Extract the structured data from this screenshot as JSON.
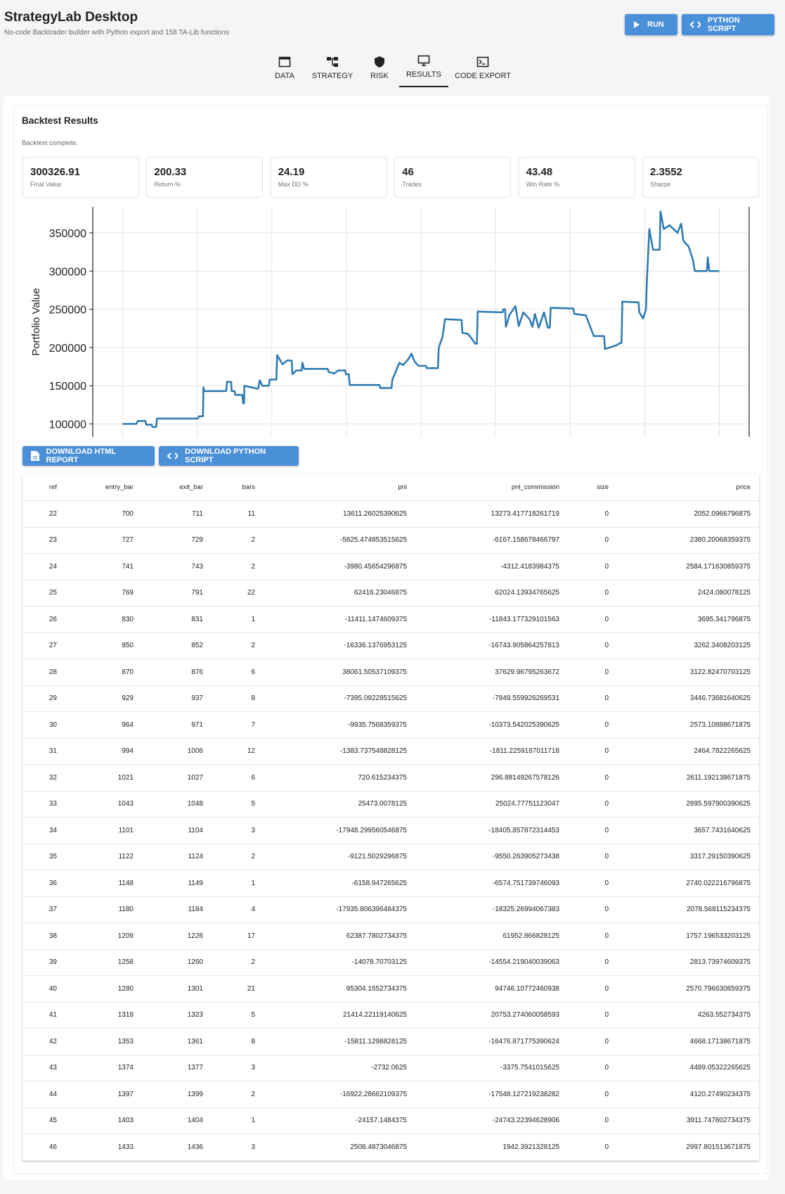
{
  "header": {
    "title": "StrategyLab Desktop",
    "subtitle": "No-code Backtrader builder with Python export and 158 TA-Lib functions"
  },
  "actions": [
    "RUN",
    "PYTHON SCRIPT"
  ],
  "tabs": [
    "DATA",
    "STRATEGY",
    "RISK",
    "RESULTS",
    "CODE EXPORT"
  ],
  "results": {
    "title": "Backtest Results",
    "status": "Backtest complete.",
    "metrics": [
      {
        "value": "300326.91",
        "label": "Final Value"
      },
      {
        "value": "200.33",
        "label": "Return %"
      },
      {
        "value": "24.19",
        "label": "Max DD %"
      },
      {
        "value": "46",
        "label": "Trades"
      },
      {
        "value": "43.48",
        "label": "Win Rate %"
      },
      {
        "value": "2.3552",
        "label": "Sharpe"
      }
    ],
    "downloads": [
      "DOWNLOAD HTML REPORT",
      "DOWNLOAD PYTHON SCRIPT"
    ]
  },
  "chart_data": {
    "type": "line",
    "ylabel": "Portfolio Value",
    "color": "#2a78b0",
    "grid": true,
    "ylim": [
      83000,
      384000
    ],
    "yticks": [
      100000,
      150000,
      200000,
      250000,
      300000,
      350000
    ],
    "x": [
      0,
      33,
      37,
      55,
      57,
      70,
      72,
      81,
      83,
      182,
      184,
      194,
      195,
      197,
      250,
      252,
      262,
      263,
      270,
      272,
      289,
      291,
      293,
      294,
      309,
      327,
      331,
      337,
      353,
      355,
      371,
      373,
      386,
      397,
      408,
      410,
      419,
      432,
      434,
      438,
      495,
      497,
      511,
      520,
      537,
      539,
      546,
      548,
      620,
      622,
      649,
      651,
      658,
      668,
      677,
      690,
      697,
      704,
      714,
      732,
      734,
      761,
      763,
      772,
      778,
      818,
      820,
      833,
      842,
      851,
      855,
      857,
      917,
      919,
      923,
      925,
      934,
      948,
      956,
      967,
      982,
      989,
      995,
      1004,
      1017,
      1026,
      1031,
      1033,
      1088,
      1090,
      1118,
      1137,
      1162,
      1164,
      1192,
      1201,
      1204,
      1206,
      1245,
      1247,
      1256,
      1263,
      1265,
      1271,
      1280,
      1296,
      1298,
      1306,
      1320,
      1339,
      1348,
      1353,
      1366,
      1376,
      1381,
      1410,
      1412,
      1416,
      1440
    ],
    "values": [
      100000,
      100000,
      104000,
      104000,
      99000,
      99000,
      96000,
      96000,
      107000,
      107000,
      110000,
      110000,
      148000,
      143000,
      143000,
      155000,
      155000,
      143000,
      143000,
      138000,
      138000,
      127000,
      127000,
      150000,
      148000,
      146000,
      157000,
      150000,
      150000,
      158000,
      158000,
      190000,
      178000,
      183000,
      183000,
      165000,
      170000,
      170000,
      180000,
      172000,
      172000,
      168000,
      166000,
      170000,
      170000,
      165000,
      165000,
      151000,
      151000,
      147000,
      147000,
      158000,
      167000,
      180000,
      177000,
      185000,
      192000,
      182000,
      176000,
      176000,
      173000,
      173000,
      200000,
      214000,
      237000,
      236000,
      219000,
      218000,
      212000,
      205000,
      205000,
      247000,
      246000,
      250000,
      250000,
      227000,
      243000,
      254000,
      228000,
      246000,
      237000,
      227000,
      244000,
      226000,
      246000,
      226000,
      226000,
      252000,
      251000,
      244000,
      242000,
      215000,
      215000,
      198000,
      203000,
      206000,
      206000,
      260000,
      259000,
      246000,
      238000,
      250000,
      285000,
      355000,
      328000,
      328000,
      378000,
      355000,
      360000,
      350000,
      362000,
      340000,
      332000,
      315000,
      300000,
      300000,
      318000,
      300000,
      300000
    ]
  },
  "table": {
    "columns": [
      "ref",
      "entry_bar",
      "exit_bar",
      "bars",
      "pnl",
      "pnl_commission",
      "size",
      "price"
    ],
    "rows": [
      [
        "22",
        "700",
        "711",
        "11",
        "13611.26025390625",
        "13273.417718261719",
        "0",
        "2052.0966796875"
      ],
      [
        "23",
        "727",
        "729",
        "2",
        "-5825.474853515625",
        "-6167.158678466797",
        "0",
        "2380.20068359375"
      ],
      [
        "24",
        "741",
        "743",
        "2",
        "-3980.45654296875",
        "-4312.4183984375",
        "0",
        "2584.171630859375"
      ],
      [
        "25",
        "769",
        "791",
        "22",
        "62416.23046875",
        "62024.13934765625",
        "0",
        "2424.080078125"
      ],
      [
        "26",
        "830",
        "831",
        "1",
        "-11411.1474609375",
        "-11843.177329101563",
        "0",
        "3695.341796875"
      ],
      [
        "27",
        "850",
        "852",
        "2",
        "-16336.1376953125",
        "-16743.905864257813",
        "0",
        "3262.3408203125"
      ],
      [
        "28",
        "870",
        "876",
        "6",
        "38061.50537109375",
        "37629.96795263672",
        "0",
        "3122.82470703125"
      ],
      [
        "29",
        "929",
        "937",
        "8",
        "-7395.09228515625",
        "-7849.559926269531",
        "0",
        "3446.73681640625"
      ],
      [
        "30",
        "964",
        "971",
        "7",
        "-9935.7568359375",
        "-10373.542025390625",
        "0",
        "2573.10888671875"
      ],
      [
        "31",
        "994",
        "1006",
        "12",
        "-1383.737548828125",
        "-1811.2259187011718",
        "0",
        "2464.7822265625"
      ],
      [
        "32",
        "1021",
        "1027",
        "6",
        "720.615234375",
        "296.88149267578126",
        "0",
        "2611.192138671875"
      ],
      [
        "33",
        "1043",
        "1048",
        "5",
        "25473.0078125",
        "25024.77751123047",
        "0",
        "2895.597900390625"
      ],
      [
        "34",
        "1101",
        "1104",
        "3",
        "-17948.299560546875",
        "-18405.857872314453",
        "0",
        "3657.7431640625"
      ],
      [
        "35",
        "1122",
        "1124",
        "2",
        "-9121.5029296875",
        "-9550.263905273438",
        "0",
        "3317.29150390625"
      ],
      [
        "36",
        "1148",
        "1149",
        "1",
        "-6158.947265625",
        "-6574.751739746093",
        "0",
        "2740.022216796875"
      ],
      [
        "37",
        "1180",
        "1184",
        "4",
        "-17935.806396484375",
        "-18325.26994067383",
        "0",
        "2078.568115234375"
      ],
      [
        "38",
        "1209",
        "1226",
        "17",
        "62387.7802734375",
        "61952.866828125",
        "0",
        "1757.196533203125"
      ],
      [
        "39",
        "1258",
        "1260",
        "2",
        "-14078.70703125",
        "-14554.219040039063",
        "0",
        "2813.73974609375"
      ],
      [
        "40",
        "1280",
        "1301",
        "21",
        "95304.1552734375",
        "94746.10772460938",
        "0",
        "2570.796630859375"
      ],
      [
        "41",
        "1318",
        "1323",
        "5",
        "21414.22119140625",
        "20753.274060058593",
        "0",
        "4263.552734375"
      ],
      [
        "42",
        "1353",
        "1361",
        "8",
        "-15811.1298828125",
        "-16476.871775390624",
        "0",
        "4668.17138671875"
      ],
      [
        "43",
        "1374",
        "1377",
        "3",
        "-2732.0625",
        "-3375.7541015625",
        "0",
        "4489.05322265625"
      ],
      [
        "44",
        "1397",
        "1399",
        "2",
        "-16922.28662109375",
        "-17548.127219238282",
        "0",
        "4120.27490234375"
      ],
      [
        "45",
        "1403",
        "1404",
        "1",
        "-24157.1484375",
        "-24743.22394628906",
        "0",
        "3911.747802734375"
      ],
      [
        "46",
        "1433",
        "1436",
        "3",
        "2508.4873046875",
        "1942.3921328125",
        "0",
        "2997.801513671875"
      ]
    ]
  }
}
